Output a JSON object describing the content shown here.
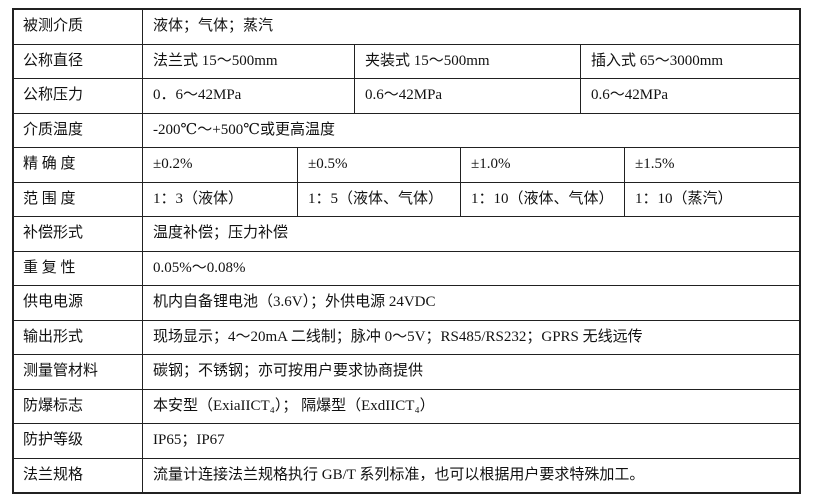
{
  "colors": {
    "border": "#212121",
    "text": "#111111",
    "background": "#ffffff"
  },
  "table": {
    "rows": [
      {
        "label": "被测介质",
        "cells": [
          "液体；气体；蒸汽"
        ]
      },
      {
        "label": "公称直径",
        "cells": [
          "法兰式 15～500mm",
          "夹装式 15～500mm",
          "插入式 65～3000mm"
        ]
      },
      {
        "label": "公称压力",
        "cells": [
          "0．6～42MPa",
          "0.6～42MPa",
          "0.6～42MPa"
        ]
      },
      {
        "label": "介质温度",
        "cells": [
          "-200℃～+500℃或更高温度"
        ]
      },
      {
        "label": "精 确 度",
        "cells": [
          "±0.2%",
          "±0.5%",
          "±1.0%",
          "±1.5%"
        ]
      },
      {
        "label": "范 围 度",
        "cells": [
          "1：3（液体）",
          "1：5（液体、气体）",
          "1：10（液体、气体）",
          "1：10（蒸汽）"
        ]
      },
      {
        "label": "补偿形式",
        "cells": [
          "温度补偿；压力补偿"
        ]
      },
      {
        "label": "重 复 性",
        "cells": [
          "0.05%～0.08%"
        ]
      },
      {
        "label": "供电电源",
        "cells": [
          "机内自备锂电池（3.6V）；外供电源 24VDC"
        ]
      },
      {
        "label": "输出形式",
        "cells": [
          "现场显示；4～20mA 二线制；脉冲 0～5V；RS485/RS232；GPRS 无线远传"
        ]
      },
      {
        "label": "测量管材料",
        "cells": [
          "碳钢；不锈钢；亦可按用户要求协商提供"
        ]
      },
      {
        "label": "防爆标志",
        "cells": [
          "本安型（ExiaIICT₄）； 隔爆型（ExdIICT₄）"
        ]
      },
      {
        "label": "防护等级",
        "cells": [
          "IP65；IP67"
        ]
      },
      {
        "label": "法兰规格",
        "cells": [
          "流量计连接法兰规格执行 GB/T 系列标准，也可以根据用户要求特殊加工。"
        ]
      }
    ]
  }
}
